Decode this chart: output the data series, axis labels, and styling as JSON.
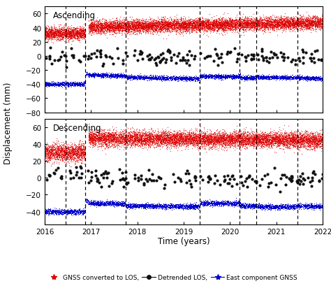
{
  "title_asc": "Ascending",
  "title_desc": "Descending",
  "ylabel": "Displacement (mm)",
  "xlabel": "Time (years)",
  "xlim": [
    2016.0,
    2022.0
  ],
  "ylim_asc": [
    -80,
    70
  ],
  "ylim_desc": [
    -55,
    70
  ],
  "yticks_asc": [
    -80,
    -60,
    -40,
    -20,
    0,
    20,
    40,
    60
  ],
  "yticks_desc": [
    -40,
    -20,
    0,
    20,
    40,
    60
  ],
  "xticks": [
    2016,
    2017,
    2018,
    2019,
    2020,
    2021,
    2022
  ],
  "dashed_lines": [
    2016.45,
    2016.87,
    2017.75,
    2019.35,
    2020.2,
    2020.57,
    2021.45
  ],
  "red_color": "#dd0000",
  "black_color": "#111111",
  "blue_color": "#0000cc",
  "legend_items": [
    "GNSS converted to LOS,",
    "Detrended LOS,",
    "East component GNSS"
  ],
  "seed": 42,
  "asc_red_base1": 32,
  "asc_red_base2": 41,
  "asc_red_noise": 4.5,
  "asc_red_jump_t": 2016.87,
  "asc_red_jump_v": 10,
  "asc_blue_seg1_base": -40,
  "asc_blue_seg2_base": -27,
  "asc_blue_seg3_base": -30,
  "asc_blue_seg4_base": -29,
  "asc_blue_seg5_base": -31,
  "asc_blue_seg6_base": -30,
  "asc_blue_seg7_base": -31,
  "asc_blue_seg8_base": -33,
  "desc_red_base1": 30,
  "desc_red_base2": 47,
  "desc_red_noise": 5.0,
  "desc_red_jump_t": 2016.87,
  "desc_red_jump_v": 18,
  "desc_blue_seg1_base": -40,
  "desc_blue_seg2_base": -30,
  "desc_blue_seg3_base": -33,
  "desc_blue_seg4_base": -30,
  "desc_blue_seg5_base": -33,
  "desc_blue_seg6_base": -34,
  "desc_blue_seg7_base": -33,
  "desc_blue_seg8_base": -38
}
